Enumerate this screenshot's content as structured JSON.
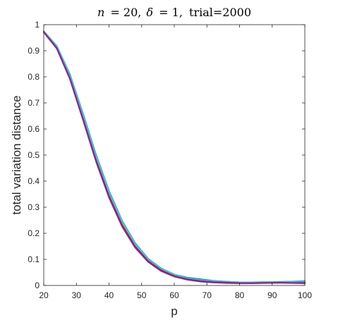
{
  "chart_data": {
    "type": "line",
    "title": {
      "n_symbol": "n",
      "n_value": "= 20,",
      "delta_symbol": "δ",
      "delta_value": "= 1,",
      "trial_text": "trial=2000"
    },
    "xlabel": "p",
    "ylabel": "total variation distance",
    "xlim": [
      20,
      100
    ],
    "ylim": [
      0,
      1
    ],
    "xticks": [
      20,
      30,
      40,
      50,
      60,
      70,
      80,
      90,
      100
    ],
    "yticks": [
      0,
      0.1,
      0.2,
      0.3,
      0.4,
      0.5,
      0.6,
      0.7,
      0.8,
      0.9,
      1
    ],
    "ytick_labels": [
      "0",
      "0.1",
      "0.2",
      "0.3",
      "0.4",
      "0.5",
      "0.6",
      "0.7",
      "0.8",
      "0.9",
      "1"
    ],
    "xtick_labels": [
      "20",
      "30",
      "40",
      "50",
      "60",
      "70",
      "80",
      "90",
      "100"
    ],
    "grid": false,
    "box": true,
    "line_width": 2,
    "series": [
      {
        "color": "#0072BD",
        "x": [
          20,
          24,
          28,
          32,
          36,
          40,
          44,
          48,
          52,
          56,
          60,
          64,
          68,
          72,
          76,
          80,
          84,
          88,
          92,
          96,
          100
        ],
        "y": [
          0.975,
          0.918,
          0.81,
          0.66,
          0.502,
          0.362,
          0.248,
          0.162,
          0.102,
          0.065,
          0.042,
          0.03,
          0.024,
          0.018,
          0.015,
          0.012,
          0.012,
          0.013,
          0.014,
          0.015,
          0.017
        ]
      },
      {
        "color": "#D95319",
        "x": [
          20,
          24,
          28,
          32,
          36,
          40,
          44,
          48,
          52,
          56,
          60,
          64,
          68,
          72,
          76,
          80,
          84,
          88,
          92,
          96,
          100
        ],
        "y": [
          0.973,
          0.913,
          0.8,
          0.648,
          0.49,
          0.35,
          0.238,
          0.155,
          0.097,
          0.061,
          0.039,
          0.026,
          0.019,
          0.015,
          0.013,
          0.011,
          0.011,
          0.012,
          0.013,
          0.012,
          0.012
        ]
      },
      {
        "color": "#EDB120",
        "x": [
          20,
          24,
          28,
          32,
          36,
          40,
          44,
          48,
          52,
          56,
          60,
          64,
          68,
          72,
          76,
          80,
          84,
          88,
          92,
          96,
          100
        ],
        "y": [
          0.974,
          0.915,
          0.805,
          0.652,
          0.495,
          0.356,
          0.243,
          0.158,
          0.099,
          0.063,
          0.041,
          0.027,
          0.02,
          0.016,
          0.014,
          0.012,
          0.012,
          0.013,
          0.013,
          0.013,
          0.014
        ]
      },
      {
        "color": "#77AC30",
        "x": [
          20,
          24,
          28,
          32,
          36,
          40,
          44,
          48,
          52,
          56,
          60,
          64,
          68,
          72,
          76,
          80,
          84,
          88,
          92,
          96,
          100
        ],
        "y": [
          0.975,
          0.917,
          0.808,
          0.657,
          0.499,
          0.359,
          0.246,
          0.16,
          0.1,
          0.064,
          0.041,
          0.028,
          0.021,
          0.016,
          0.014,
          0.012,
          0.012,
          0.013,
          0.014,
          0.014,
          0.015
        ]
      },
      {
        "color": "#4DBEEE",
        "x": [
          20,
          24,
          28,
          32,
          36,
          40,
          44,
          48,
          52,
          56,
          60,
          64,
          68,
          72,
          76,
          80,
          84,
          88,
          92,
          96,
          100
        ],
        "y": [
          0.974,
          0.916,
          0.806,
          0.655,
          0.497,
          0.357,
          0.244,
          0.159,
          0.1,
          0.063,
          0.041,
          0.028,
          0.021,
          0.017,
          0.014,
          0.012,
          0.012,
          0.013,
          0.013,
          0.014,
          0.015
        ]
      },
      {
        "color": "#A2142F",
        "x": [
          20,
          24,
          28,
          32,
          36,
          40,
          44,
          48,
          52,
          56,
          60,
          64,
          68,
          72,
          76,
          80,
          84,
          88,
          92,
          96,
          100
        ],
        "y": [
          0.972,
          0.91,
          0.795,
          0.64,
          0.481,
          0.342,
          0.231,
          0.149,
          0.093,
          0.058,
          0.036,
          0.024,
          0.017,
          0.013,
          0.011,
          0.009,
          0.009,
          0.01,
          0.011,
          0.01,
          0.01
        ]
      },
      {
        "color": "#7E2F8E",
        "x": [
          20,
          24,
          28,
          32,
          36,
          40,
          44,
          48,
          52,
          56,
          60,
          64,
          68,
          72,
          76,
          80,
          84,
          88,
          92,
          96,
          100
        ],
        "y": [
          0.971,
          0.908,
          0.792,
          0.636,
          0.476,
          0.337,
          0.226,
          0.145,
          0.09,
          0.055,
          0.034,
          0.022,
          0.015,
          0.011,
          0.009,
          0.008,
          0.008,
          0.009,
          0.01,
          0.009,
          0.008
        ]
      }
    ]
  }
}
